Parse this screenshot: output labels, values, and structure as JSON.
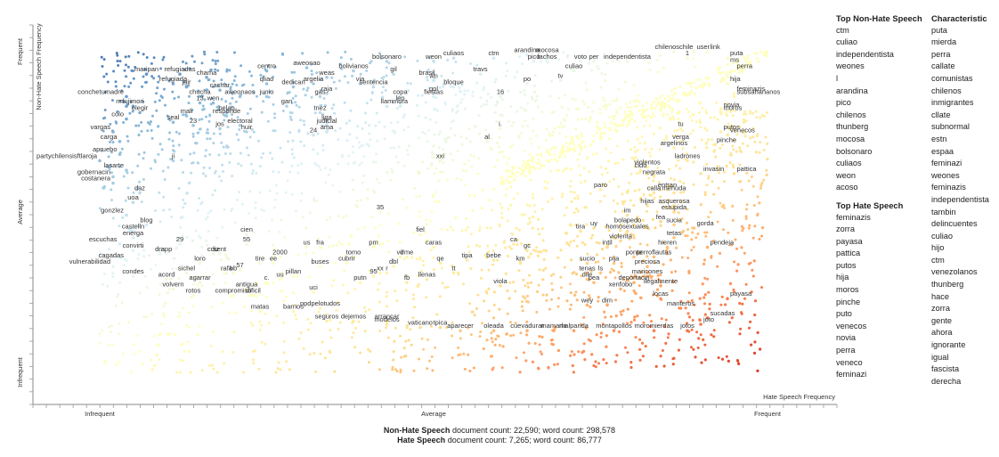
{
  "chart_data": {
    "type": "scatter",
    "x_axis": {
      "label": "Hate Speech Frequency",
      "ticks": [
        "Infrequent",
        "Average",
        "Frequent"
      ],
      "range": [
        0,
        1
      ]
    },
    "y_axis": {
      "label": "Non-Hate Speech Frequency",
      "ticks": [
        "Infrequent",
        "Average",
        "Frequent"
      ],
      "range": [
        0,
        1
      ]
    },
    "color_scale": [
      "#d7301f",
      "#fc8d59",
      "#fee090",
      "#ffffbf",
      "#e0f3f8",
      "#91bfdb",
      "#4575b4"
    ],
    "labeled_points": [
      {
        "t": "maripan",
        "x": 0.07,
        "y": 0.93
      },
      {
        "t": "refugiadas",
        "x": 0.12,
        "y": 0.93
      },
      {
        "t": "chama",
        "x": 0.16,
        "y": 0.92
      },
      {
        "t": "refugiada",
        "x": 0.11,
        "y": 0.9
      },
      {
        "t": "jair",
        "x": 0.13,
        "y": 0.89
      },
      {
        "t": "cachar",
        "x": 0.18,
        "y": 0.88
      },
      {
        "t": "conchetumadre",
        "x": 0.04,
        "y": 0.86
      },
      {
        "t": "chucha",
        "x": 0.15,
        "y": 0.86
      },
      {
        "t": "aweonaos",
        "x": 0.21,
        "y": 0.86
      },
      {
        "t": "junio",
        "x": 0.25,
        "y": 0.86
      },
      {
        "t": "13",
        "x": 0.15,
        "y": 0.84
      },
      {
        "t": "wen",
        "x": 0.17,
        "y": 0.84
      },
      {
        "t": "rm",
        "x": 0.04,
        "y": 0.83
      },
      {
        "t": "fujimori",
        "x": 0.05,
        "y": 0.83
      },
      {
        "t": "elegir",
        "x": 0.06,
        "y": 0.81
      },
      {
        "t": "mali",
        "x": 0.13,
        "y": 0.8
      },
      {
        "t": "pelao",
        "x": 0.19,
        "y": 0.81
      },
      {
        "t": "responde",
        "x": 0.19,
        "y": 0.8
      },
      {
        "t": "colo",
        "x": 0.04,
        "y": 0.79
      },
      {
        "t": "seal",
        "x": 0.11,
        "y": 0.78
      },
      {
        "t": "23",
        "x": 0.14,
        "y": 0.77
      },
      {
        "t": "jos",
        "x": 0.18,
        "y": 0.76
      },
      {
        "t": "electoral",
        "x": 0.21,
        "y": 0.77
      },
      {
        "t": "centro",
        "x": 0.25,
        "y": 0.94
      },
      {
        "t": "aweonao",
        "x": 0.31,
        "y": 0.95
      },
      {
        "t": "weas",
        "x": 0.34,
        "y": 0.92
      },
      {
        "t": "qliao",
        "x": 0.25,
        "y": 0.9
      },
      {
        "t": "dedican",
        "x": 0.29,
        "y": 0.89
      },
      {
        "t": "argelia",
        "x": 0.32,
        "y": 0.9
      },
      {
        "t": "raja",
        "x": 0.34,
        "y": 0.87
      },
      {
        "t": "gas",
        "x": 0.33,
        "y": 0.86
      },
      {
        "t": "gan",
        "x": 0.28,
        "y": 0.83
      },
      {
        "t": "tnez",
        "x": 0.33,
        "y": 0.81
      },
      {
        "t": "liga",
        "x": 0.34,
        "y": 0.78
      },
      {
        "t": "judicial",
        "x": 0.34,
        "y": 0.77
      },
      {
        "t": "ama",
        "x": 0.34,
        "y": 0.75
      },
      {
        "t": "24",
        "x": 0.32,
        "y": 0.74
      },
      {
        "t": "huir",
        "x": 0.22,
        "y": 0.75
      },
      {
        "t": "bolivianos",
        "x": 0.38,
        "y": 0.94
      },
      {
        "t": "via",
        "x": 0.39,
        "y": 0.9
      },
      {
        "t": "sentencia",
        "x": 0.41,
        "y": 0.89
      },
      {
        "t": "gil",
        "x": 0.44,
        "y": 0.93
      },
      {
        "t": "bolsonaro",
        "x": 0.43,
        "y": 0.97
      },
      {
        "t": "copa",
        "x": 0.45,
        "y": 0.86
      },
      {
        "t": "leo",
        "x": 0.45,
        "y": 0.84
      },
      {
        "t": "llam",
        "x": 0.43,
        "y": 0.83
      },
      {
        "t": "mora",
        "x": 0.45,
        "y": 0.83
      },
      {
        "t": "culiaos",
        "x": 0.53,
        "y": 0.98
      },
      {
        "t": "weon",
        "x": 0.5,
        "y": 0.97
      },
      {
        "t": "brasil",
        "x": 0.49,
        "y": 0.92
      },
      {
        "t": "wn",
        "x": 0.5,
        "y": 0.91
      },
      {
        "t": "bloque",
        "x": 0.53,
        "y": 0.89
      },
      {
        "t": "gol",
        "x": 0.5,
        "y": 0.87
      },
      {
        "t": "fiestas",
        "x": 0.5,
        "y": 0.86
      },
      {
        "t": "16",
        "x": 0.6,
        "y": 0.86
      },
      {
        "t": "ctm",
        "x": 0.59,
        "y": 0.98
      },
      {
        "t": "travs",
        "x": 0.57,
        "y": 0.93
      },
      {
        "t": "arandina",
        "x": 0.64,
        "y": 0.99
      },
      {
        "t": "mocosa",
        "x": 0.67,
        "y": 0.99
      },
      {
        "t": "pico",
        "x": 0.65,
        "y": 0.97
      },
      {
        "t": "fachos",
        "x": 0.67,
        "y": 0.97
      },
      {
        "t": "po",
        "x": 0.64,
        "y": 0.9
      },
      {
        "t": "tv",
        "x": 0.69,
        "y": 0.91
      },
      {
        "t": "culiao",
        "x": 0.71,
        "y": 0.94
      },
      {
        "t": "voto",
        "x": 0.72,
        "y": 0.97
      },
      {
        "t": "per",
        "x": 0.74,
        "y": 0.97
      },
      {
        "t": "independentista",
        "x": 0.79,
        "y": 0.97
      },
      {
        "t": "chilenoschile",
        "x": 0.86,
        "y": 1.0
      },
      {
        "t": "user",
        "x": 0.89,
        "y": 1.0
      },
      {
        "t": "link",
        "x": 0.91,
        "y": 1.0
      },
      {
        "t": "1",
        "x": 0.88,
        "y": 0.98
      },
      {
        "t": "puta",
        "x": 0.94,
        "y": 0.98
      },
      {
        "t": "ms",
        "x": 0.94,
        "y": 0.96
      },
      {
        "t": "perra",
        "x": 0.95,
        "y": 0.94
      },
      {
        "t": "hija",
        "x": 0.94,
        "y": 0.9
      },
      {
        "t": "feminazis",
        "x": 0.95,
        "y": 0.87
      },
      {
        "t": "subsaharianos",
        "x": 0.95,
        "y": 0.86
      },
      {
        "t": "novia",
        "x": 0.93,
        "y": 0.82
      },
      {
        "t": "moros",
        "x": 0.93,
        "y": 0.81
      },
      {
        "t": "tu",
        "x": 0.87,
        "y": 0.76
      },
      {
        "t": "putos",
        "x": 0.93,
        "y": 0.75
      },
      {
        "t": "venecos",
        "x": 0.94,
        "y": 0.74
      },
      {
        "t": "verga",
        "x": 0.87,
        "y": 0.72
      },
      {
        "t": "pinche",
        "x": 0.92,
        "y": 0.71
      },
      {
        "t": "argelinos",
        "x": 0.86,
        "y": 0.7
      },
      {
        "t": "ladrones",
        "x": 0.88,
        "y": 0.66
      },
      {
        "t": "violentos",
        "x": 0.82,
        "y": 0.64
      },
      {
        "t": "cido",
        "x": 0.81,
        "y": 0.63
      },
      {
        "t": "pattica",
        "x": 0.95,
        "y": 0.62
      },
      {
        "t": "invasin",
        "x": 0.9,
        "y": 0.62
      },
      {
        "t": "negrata",
        "x": 0.83,
        "y": 0.61
      },
      {
        "t": "entran",
        "x": 0.85,
        "y": 0.57
      },
      {
        "t": "menuda",
        "x": 0.86,
        "y": 0.56
      },
      {
        "t": "calla",
        "x": 0.83,
        "y": 0.56
      },
      {
        "t": "paro",
        "x": 0.75,
        "y": 0.57
      },
      {
        "t": "hijas",
        "x": 0.82,
        "y": 0.52
      },
      {
        "t": "asquerosa",
        "x": 0.86,
        "y": 0.52
      },
      {
        "t": "estupida",
        "x": 0.86,
        "y": 0.5
      },
      {
        "t": "im",
        "x": 0.79,
        "y": 0.49
      },
      {
        "t": "bola",
        "x": 0.78,
        "y": 0.46
      },
      {
        "t": "pedo",
        "x": 0.8,
        "y": 0.46
      },
      {
        "t": "fea",
        "x": 0.84,
        "y": 0.47
      },
      {
        "t": "sucia",
        "x": 0.86,
        "y": 0.46
      },
      {
        "t": "gorda",
        "x": 0.89,
        "y": 0.45
      },
      {
        "t": "homosexuales",
        "x": 0.79,
        "y": 0.44
      },
      {
        "t": "tetas",
        "x": 0.86,
        "y": 0.42
      },
      {
        "t": "violenta",
        "x": 0.78,
        "y": 0.41
      },
      {
        "t": "intil",
        "x": 0.76,
        "y": 0.39
      },
      {
        "t": "hieren",
        "x": 0.85,
        "y": 0.39
      },
      {
        "t": "pendeja",
        "x": 0.91,
        "y": 0.39
      },
      {
        "t": "ponte",
        "x": 0.8,
        "y": 0.36
      },
      {
        "t": "perroflautas",
        "x": 0.83,
        "y": 0.36
      },
      {
        "t": "pija",
        "x": 0.77,
        "y": 0.34
      },
      {
        "t": "preciosa",
        "x": 0.82,
        "y": 0.33
      },
      {
        "t": "maricones",
        "x": 0.82,
        "y": 0.3
      },
      {
        "t": "deportacin",
        "x": 0.8,
        "y": 0.28
      },
      {
        "t": "ilegalmente",
        "x": 0.84,
        "y": 0.27
      },
      {
        "t": "xenfobo",
        "x": 0.78,
        "y": 0.26
      },
      {
        "t": "locas",
        "x": 0.84,
        "y": 0.23
      },
      {
        "t": "payasa",
        "x": 0.94,
        "y": 0.23
      },
      {
        "t": "dim",
        "x": 0.76,
        "y": 0.21
      },
      {
        "t": "manteros",
        "x": 0.87,
        "y": 0.2
      },
      {
        "t": "sucadas",
        "x": 0.91,
        "y": 0.17
      },
      {
        "t": "joto",
        "x": 0.9,
        "y": 0.15
      },
      {
        "t": "jotos",
        "x": 0.88,
        "y": 0.13
      },
      {
        "t": "moromierdas",
        "x": 0.83,
        "y": 0.13
      },
      {
        "t": "montapollos",
        "x": 0.77,
        "y": 0.13
      },
      {
        "t": "wey",
        "x": 0.73,
        "y": 0.21
      },
      {
        "t": "tira",
        "x": 0.72,
        "y": 0.44
      },
      {
        "t": "uy",
        "x": 0.74,
        "y": 0.45
      },
      {
        "t": "sucio",
        "x": 0.73,
        "y": 0.34
      },
      {
        "t": "tenas",
        "x": 0.73,
        "y": 0.31
      },
      {
        "t": "dile",
        "x": 0.73,
        "y": 0.29
      },
      {
        "t": "ls",
        "x": 0.75,
        "y": 0.31
      },
      {
        "t": "pea",
        "x": 0.74,
        "y": 0.28
      },
      {
        "t": "mamarla",
        "x": 0.68,
        "y": 0.13
      },
      {
        "t": "malparida",
        "x": 0.71,
        "y": 0.13
      },
      {
        "t": "cuevadurar",
        "x": 0.64,
        "y": 0.13
      },
      {
        "t": "oleada",
        "x": 0.59,
        "y": 0.13
      },
      {
        "t": "aparecer",
        "x": 0.54,
        "y": 0.13
      },
      {
        "t": "tpica",
        "x": 0.51,
        "y": 0.14
      },
      {
        "t": "vaticano",
        "x": 0.48,
        "y": 0.14
      },
      {
        "t": "arrancar",
        "x": 0.43,
        "y": 0.16
      },
      {
        "t": "modelos",
        "x": 0.43,
        "y": 0.15
      },
      {
        "t": "dejemos",
        "x": 0.38,
        "y": 0.16
      },
      {
        "t": "seguros",
        "x": 0.34,
        "y": 0.16
      },
      {
        "t": "ppdpelotudos",
        "x": 0.33,
        "y": 0.2
      },
      {
        "t": "barrios",
        "x": 0.29,
        "y": 0.19
      },
      {
        "t": "matas",
        "x": 0.24,
        "y": 0.19
      },
      {
        "t": "compromiso",
        "x": 0.2,
        "y": 0.24
      },
      {
        "t": "antigua",
        "x": 0.22,
        "y": 0.26
      },
      {
        "t": "dificil",
        "x": 0.23,
        "y": 0.24
      },
      {
        "t": "c.",
        "x": 0.25,
        "y": 0.28
      },
      {
        "t": "rotos",
        "x": 0.14,
        "y": 0.24
      },
      {
        "t": "volvern",
        "x": 0.11,
        "y": 0.26
      },
      {
        "t": "agarrar",
        "x": 0.15,
        "y": 0.28
      },
      {
        "t": "acord",
        "x": 0.1,
        "y": 0.29
      },
      {
        "t": "sichel",
        "x": 0.13,
        "y": 0.31
      },
      {
        "t": "rafa",
        "x": 0.19,
        "y": 0.31
      },
      {
        "t": "bb",
        "x": 0.2,
        "y": 0.31
      },
      {
        "t": "57",
        "x": 0.21,
        "y": 0.32
      },
      {
        "t": "loro",
        "x": 0.15,
        "y": 0.34
      },
      {
        "t": "dra",
        "x": 0.09,
        "y": 0.37
      },
      {
        "t": "app",
        "x": 0.1,
        "y": 0.37
      },
      {
        "t": "cdiz",
        "x": 0.17,
        "y": 0.37
      },
      {
        "t": "sent",
        "x": 0.18,
        "y": 0.37
      },
      {
        "t": "tire",
        "x": 0.24,
        "y": 0.34
      },
      {
        "t": "ee",
        "x": 0.26,
        "y": 0.34
      },
      {
        "t": "2000",
        "x": 0.27,
        "y": 0.36
      },
      {
        "t": "29",
        "x": 0.12,
        "y": 0.4
      },
      {
        "t": "55",
        "x": 0.22,
        "y": 0.4
      },
      {
        "t": "uu",
        "x": 0.27,
        "y": 0.29
      },
      {
        "t": "pillan",
        "x": 0.29,
        "y": 0.3
      },
      {
        "t": "uci",
        "x": 0.32,
        "y": 0.25
      },
      {
        "t": "buses",
        "x": 0.33,
        "y": 0.33
      },
      {
        "t": "us",
        "x": 0.31,
        "y": 0.39
      },
      {
        "t": "fra",
        "x": 0.33,
        "y": 0.39
      },
      {
        "t": "cubrir",
        "x": 0.37,
        "y": 0.34
      },
      {
        "t": "tomo",
        "x": 0.38,
        "y": 0.36
      },
      {
        "t": "pm",
        "x": 0.41,
        "y": 0.39
      },
      {
        "t": "95",
        "x": 0.41,
        "y": 0.3
      },
      {
        "t": "xx",
        "x": 0.42,
        "y": 0.31
      },
      {
        "t": "r",
        "x": 0.43,
        "y": 0.31
      },
      {
        "t": "putn",
        "x": 0.39,
        "y": 0.28
      },
      {
        "t": "dbl",
        "x": 0.44,
        "y": 0.33
      },
      {
        "t": "vd",
        "x": 0.45,
        "y": 0.36
      },
      {
        "t": "irme",
        "x": 0.46,
        "y": 0.36
      },
      {
        "t": "fb",
        "x": 0.46,
        "y": 0.28
      },
      {
        "t": "llenas",
        "x": 0.49,
        "y": 0.29
      },
      {
        "t": "caras",
        "x": 0.5,
        "y": 0.39
      },
      {
        "t": "qe",
        "x": 0.51,
        "y": 0.34
      },
      {
        "t": "tt",
        "x": 0.53,
        "y": 0.31
      },
      {
        "t": "tipa",
        "x": 0.55,
        "y": 0.35
      },
      {
        "t": "fiel",
        "x": 0.48,
        "y": 0.43
      },
      {
        "t": "bebe",
        "x": 0.59,
        "y": 0.35
      },
      {
        "t": "ca",
        "x": 0.62,
        "y": 0.4
      },
      {
        "t": "gc",
        "x": 0.64,
        "y": 0.38
      },
      {
        "t": "km",
        "x": 0.63,
        "y": 0.34
      },
      {
        "t": "viola",
        "x": 0.6,
        "y": 0.27
      },
      {
        "t": "35",
        "x": 0.42,
        "y": 0.5
      },
      {
        "t": "xxi",
        "x": 0.51,
        "y": 0.66
      },
      {
        "t": "al",
        "x": 0.58,
        "y": 0.72
      },
      {
        "t": "i.",
        "x": 0.6,
        "y": 0.76
      },
      {
        "t": "cien",
        "x": 0.22,
        "y": 0.43
      },
      {
        "t": "vargas",
        "x": 0.02,
        "y": 0.75
      },
      {
        "t": "carga",
        "x": 0.03,
        "y": 0.72
      },
      {
        "t": "apruebo",
        "x": 0.03,
        "y": 0.68
      },
      {
        "t": "partychilensisftlaroja",
        "x": 0.0,
        "y": 0.66
      },
      {
        "t": "lasarte",
        "x": 0.04,
        "y": 0.63
      },
      {
        "t": "ji",
        "x": 0.11,
        "y": 0.66
      },
      {
        "t": "gobernacin",
        "x": 0.02,
        "y": 0.61
      },
      {
        "t": "costanera",
        "x": 0.02,
        "y": 0.59
      },
      {
        "t": "daz",
        "x": 0.06,
        "y": 0.56
      },
      {
        "t": "uoa",
        "x": 0.05,
        "y": 0.53
      },
      {
        "t": "gonzlez",
        "x": 0.04,
        "y": 0.49
      },
      {
        "t": "blog",
        "x": 0.07,
        "y": 0.46
      },
      {
        "t": "castelln",
        "x": 0.05,
        "y": 0.44
      },
      {
        "t": "energa",
        "x": 0.05,
        "y": 0.42
      },
      {
        "t": "escuchas",
        "x": 0.03,
        "y": 0.4
      },
      {
        "t": "convirti",
        "x": 0.05,
        "y": 0.38
      },
      {
        "t": "cagadas",
        "x": 0.04,
        "y": 0.35
      },
      {
        "t": "vulnerabilidad",
        "x": 0.02,
        "y": 0.33
      },
      {
        "t": "condes",
        "x": 0.05,
        "y": 0.3
      }
    ]
  },
  "axis_titles": {
    "y_rotated": "Non-Hate Speech Frequency",
    "x_bottom_right": "Hate Speech Frequency"
  },
  "side_columns": {
    "top_non_hate": {
      "title": "Top Non-Hate Speech",
      "items": [
        "ctm",
        "culiao",
        "independentista",
        "weones",
        "l",
        "arandina",
        "pico",
        "chilenos",
        "thunberg",
        "mocosa",
        "bolsonaro",
        "culiaos",
        "weon",
        "acoso"
      ]
    },
    "top_hate": {
      "title": "Top Hate Speech",
      "items": [
        "feminazis",
        "zorra",
        "payasa",
        "pattica",
        "putos",
        "hija",
        "moros",
        "pinche",
        "puto",
        "venecos",
        "novia",
        "perra",
        "veneco",
        "feminazi"
      ]
    },
    "characteristic": {
      "title": "Characteristic",
      "items": [
        "puta",
        "mierda",
        "perra",
        "callate",
        "comunistas",
        "chilenos",
        "inmigrantes",
        "cllate",
        "subnormal",
        "estn",
        "espaa",
        "feminazi",
        "weones",
        "feminazis",
        "independentista",
        "tambin",
        "delincuentes",
        "culiao",
        "hijo",
        "ctm",
        "venezolanos",
        "thunberg",
        "hace",
        "zorra",
        "gente",
        "ahora",
        "ignorante",
        "igual",
        "fascista",
        "derecha"
      ]
    }
  },
  "footer": {
    "non_hate_label": "Non-Hate Speech",
    "non_hate_counts": "document count: 22,590; word count: 298,578",
    "hate_label": "Hate Speech",
    "hate_counts": "document count: 7,265; word count: 86,777"
  }
}
